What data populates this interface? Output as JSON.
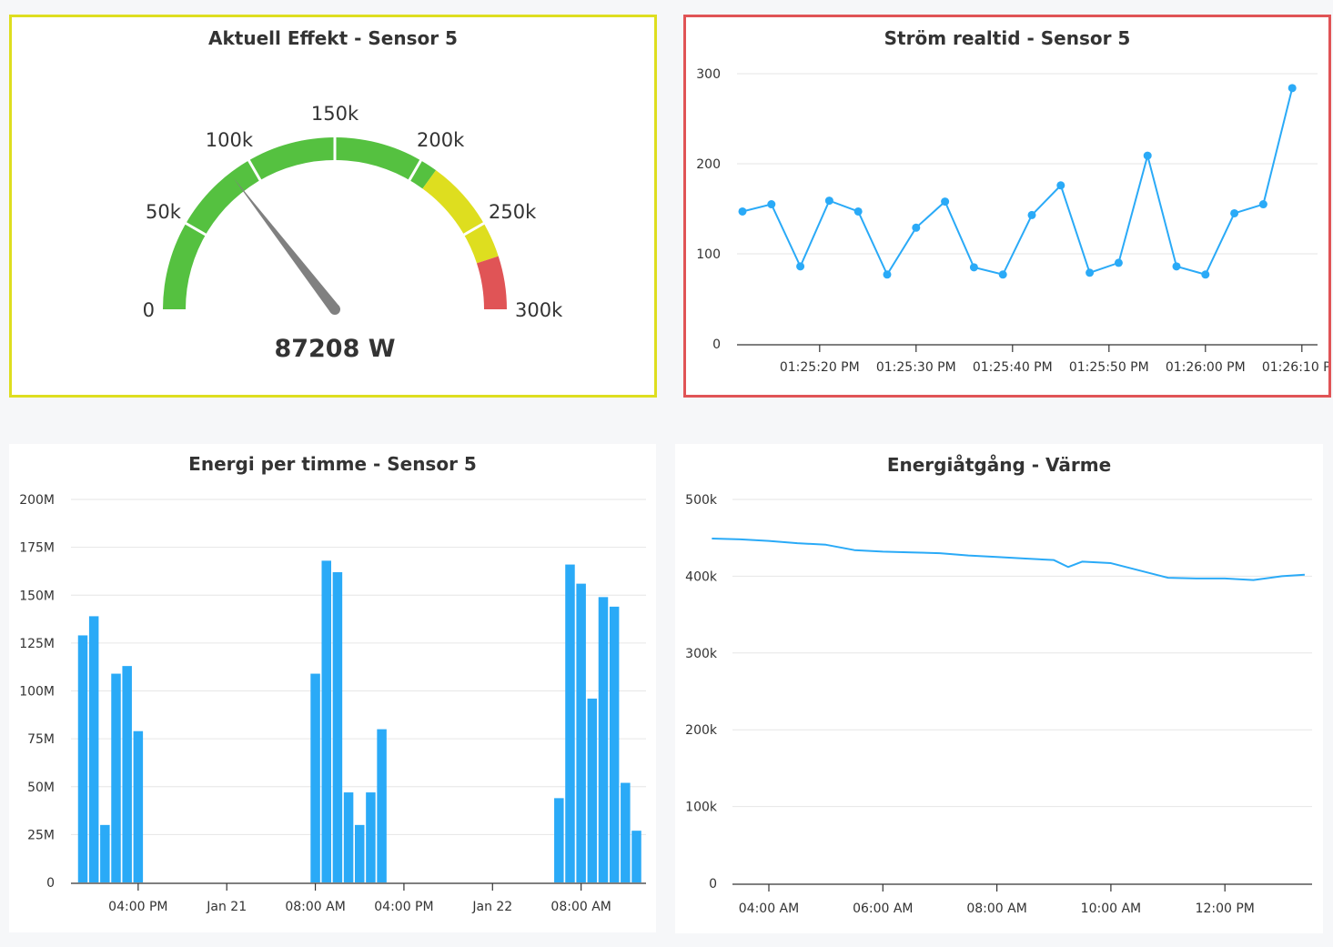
{
  "colors": {
    "series": "#2aaaf7",
    "gauge_green": "#55c140",
    "gauge_yellow": "#dede1f",
    "gauge_red": "#e05456",
    "needle": "#808080",
    "grid": "#e6e6e6",
    "axis": "#333333"
  },
  "chart_data": [
    {
      "id": "gauge",
      "type": "gauge",
      "title": "Aktuell Effekt - Sensor 5",
      "min": 0,
      "max": 300000,
      "value": 87208,
      "value_label": "87208 W",
      "tick_values": [
        0,
        50000,
        100000,
        150000,
        200000,
        250000,
        300000
      ],
      "tick_labels": [
        "0",
        "50k",
        "100k",
        "150k",
        "200k",
        "250k",
        "300k"
      ],
      "bands": [
        {
          "from": 0,
          "to": 210000,
          "color": "#55c140"
        },
        {
          "from": 210000,
          "to": 270000,
          "color": "#dede1f"
        },
        {
          "from": 270000,
          "to": 300000,
          "color": "#e05456"
        }
      ]
    },
    {
      "id": "current",
      "type": "line",
      "title": "Ström realtid - Sensor 5",
      "x_start": "01:25:12 PM",
      "x_step_seconds": 3,
      "x_tick_labels": [
        "01:25:20 PM",
        "01:25:30 PM",
        "01:25:40 PM",
        "01:25:50 PM",
        "01:26:00 PM",
        "01:26:10 PM"
      ],
      "y_ticks": [
        0,
        100,
        200,
        300
      ],
      "ylim": [
        0,
        300
      ],
      "values": [
        147,
        155,
        86,
        159,
        147,
        77,
        129,
        158,
        85,
        77,
        143,
        176,
        79,
        90,
        209,
        86,
        77,
        145,
        155,
        284
      ]
    },
    {
      "id": "energy-hour",
      "type": "bar",
      "title": "Energi per timme - Sensor 5",
      "x_tick_labels": [
        "04:00 PM",
        "Jan 21",
        "08:00 AM",
        "04:00 PM",
        "Jan 22",
        "08:00 AM"
      ],
      "y_ticks": [
        0,
        25000000,
        50000000,
        75000000,
        100000000,
        125000000,
        150000000,
        175000000,
        200000000
      ],
      "y_tick_labels": [
        "0",
        "25M",
        "50M",
        "75M",
        "100M",
        "125M",
        "150M",
        "175M",
        "200M"
      ],
      "ylim": [
        0,
        200000000
      ],
      "bar_groups": [
        {
          "start": "Jan 20 11:00 AM",
          "values": [
            129000000,
            139000000,
            30000000,
            109000000,
            113000000,
            79000000
          ]
        },
        {
          "start": "Jan 21 08:00 AM",
          "values": [
            109000000,
            168000000,
            162000000,
            47000000,
            30000000,
            47000000,
            80000000
          ]
        },
        {
          "start": "Jan 22 06:00 AM",
          "values": [
            44000000,
            166000000,
            156000000,
            96000000,
            149000000,
            144000000,
            52000000,
            27000000
          ]
        }
      ]
    },
    {
      "id": "heat",
      "type": "line",
      "title": "Energiåtgång - Värme",
      "x_tick_labels": [
        "04:00 AM",
        "06:00 AM",
        "08:00 AM",
        "10:00 AM",
        "12:00 PM"
      ],
      "y_ticks": [
        0,
        100000,
        200000,
        300000,
        400000,
        500000
      ],
      "y_tick_labels": [
        "0",
        "100k",
        "200k",
        "300k",
        "400k",
        "500k"
      ],
      "ylim": [
        0,
        500000
      ],
      "x_hours": [
        3.0,
        3.5,
        4.0,
        4.5,
        5.0,
        5.5,
        6.0,
        6.5,
        7.0,
        7.5,
        8.0,
        8.5,
        9.0,
        9.25,
        9.5,
        10.0,
        11.0,
        11.5,
        12.0,
        12.5,
        13.0,
        13.4
      ],
      "values": [
        449000,
        448000,
        446000,
        443000,
        441000,
        434000,
        432000,
        431000,
        430000,
        427000,
        425000,
        423000,
        421000,
        412000,
        419000,
        417000,
        398000,
        397000,
        397000,
        395000,
        400000,
        402000
      ]
    }
  ]
}
